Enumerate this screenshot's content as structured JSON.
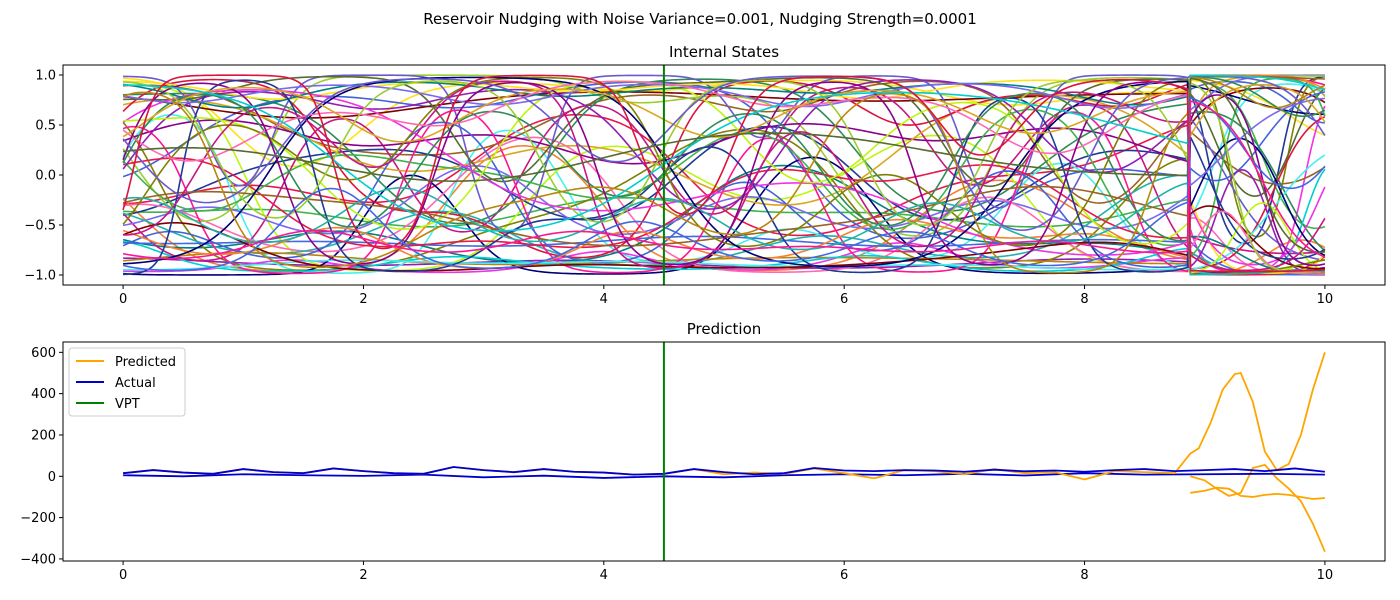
{
  "figure": {
    "suptitle": "Reservoir Nudging with Noise Variance=0.001, Nudging Strength=0.0001"
  },
  "chart_data": [
    {
      "type": "line",
      "title": "Internal States",
      "xlabel": "",
      "ylabel": "",
      "xlim": [
        -0.5,
        10.5
      ],
      "ylim": [
        -1.1,
        1.1
      ],
      "xticks": [
        0,
        2,
        4,
        6,
        8,
        10
      ],
      "xtick_labels": [
        "0",
        "2",
        "4",
        "6",
        "8",
        "10"
      ],
      "yticks": [
        1.0,
        0.5,
        0.0,
        -0.5,
        -1.0
      ],
      "ytick_labels": [
        "1.0",
        "0.5",
        "0.0",
        "−0.5",
        "−1.0"
      ],
      "grid": false,
      "legend": "none",
      "n_series": 60,
      "x_range": [
        0,
        10
      ],
      "reset_x": 8.88,
      "vline": {
        "x": 4.5,
        "color": "#008000"
      },
      "colors": [
        "#e6194b",
        "#3cb44b",
        "#ffe119",
        "#4363d8",
        "#f58231",
        "#911eb4",
        "#46f0f0",
        "#f032e6",
        "#bcf60c",
        "#008080",
        "#9a6324",
        "#800000",
        "#808000",
        "#000075",
        "#1f3a93",
        "#c71585",
        "#2e8b57",
        "#7b68ee",
        "#ff69b4",
        "#9acd32",
        "#20b2aa",
        "#8b008b",
        "#daa520",
        "#6a5acd",
        "#b8860b",
        "#00ced1",
        "#dc143c",
        "#556b2f",
        "#4169e1",
        "#ff1493"
      ],
      "summary": "Sixty reservoir internal-state traces oscillating smoothly between -1 and 1 over time 0 to 10, with an abrupt reset near t≈8.9"
    },
    {
      "type": "line",
      "title": "Prediction",
      "xlabel": "",
      "ylabel": "",
      "xlim": [
        -0.5,
        10.5
      ],
      "ylim": [
        -410,
        650
      ],
      "xticks": [
        0,
        2,
        4,
        6,
        8,
        10
      ],
      "xtick_labels": [
        "0",
        "2",
        "4",
        "6",
        "8",
        "10"
      ],
      "yticks": [
        600,
        400,
        200,
        0,
        -200,
        -400
      ],
      "ytick_labels": [
        "600",
        "400",
        "200",
        "0",
        "−200",
        "−400"
      ],
      "grid": false,
      "legend": "upper-left",
      "series": [
        {
          "name": "Predicted",
          "color": "#ffa500",
          "x": [
            0,
            0.25,
            0.5,
            0.75,
            1,
            1.25,
            1.5,
            1.75,
            2,
            2.25,
            2.5,
            2.75,
            3,
            3.25,
            3.5,
            3.75,
            4,
            4.25,
            4.5,
            4.75,
            5,
            5.25,
            5.5,
            5.75,
            6,
            6.25,
            6.5,
            6.75,
            7,
            7.25,
            7.5,
            7.75,
            8,
            8.25,
            8.5,
            8.75,
            8.88,
            8.95,
            9.05,
            9.15,
            9.25,
            9.3,
            9.4,
            9.5,
            9.6,
            9.7,
            9.8,
            9.9,
            10
          ],
          "y": [
            15,
            30,
            18,
            12,
            35,
            20,
            15,
            38,
            25,
            15,
            12,
            45,
            30,
            20,
            35,
            22,
            18,
            8,
            12,
            35,
            10,
            18,
            12,
            38,
            15,
            -10,
            30,
            25,
            10,
            35,
            15,
            20,
            -15,
            25,
            20,
            15,
            110,
            135,
            260,
            420,
            495,
            500,
            360,
            120,
            30,
            60,
            200,
            420,
            600
          ]
        },
        {
          "name": "Actual",
          "color": "#0000cd",
          "x": [
            0,
            0.25,
            0.5,
            0.75,
            1,
            1.25,
            1.5,
            1.75,
            2,
            2.25,
            2.5,
            2.75,
            3,
            3.25,
            3.5,
            3.75,
            4,
            4.25,
            4.5,
            4.75,
            5,
            5.25,
            5.5,
            5.75,
            6,
            6.25,
            6.5,
            6.75,
            7,
            7.25,
            7.5,
            7.75,
            8,
            8.25,
            8.5,
            8.75,
            9,
            9.25,
            9.5,
            9.75,
            10
          ],
          "y": [
            15,
            30,
            18,
            12,
            35,
            20,
            15,
            38,
            25,
            15,
            12,
            45,
            30,
            20,
            35,
            22,
            18,
            8,
            12,
            35,
            20,
            10,
            15,
            40,
            28,
            25,
            30,
            28,
            22,
            32,
            24,
            28,
            22,
            30,
            35,
            25,
            30,
            35,
            25,
            38,
            22
          ]
        },
        {
          "name": "VPT",
          "color": "#008000",
          "x": [
            4.5,
            4.5
          ],
          "y": [
            -410,
            650
          ]
        }
      ],
      "extra_lines": [
        {
          "name": "predicted-lower-a",
          "color": "#ffa500",
          "x": [
            8.88,
            9.0,
            9.1,
            9.2,
            9.3,
            9.4,
            9.5,
            9.6,
            9.7,
            9.8,
            9.9,
            10
          ],
          "y": [
            -80,
            -70,
            -55,
            -60,
            -95,
            -100,
            -90,
            -85,
            -90,
            -100,
            -110,
            -105
          ]
        },
        {
          "name": "predicted-lower-b",
          "color": "#ffa500",
          "x": [
            8.88,
            9.0,
            9.1,
            9.2,
            9.3,
            9.4,
            9.5,
            9.6,
            9.7,
            9.8,
            9.9,
            10
          ],
          "y": [
            0,
            -20,
            -60,
            -95,
            -80,
            40,
            55,
            -10,
            -60,
            -120,
            -230,
            -365
          ]
        },
        {
          "name": "actual-lower",
          "color": "#0000cd",
          "x": [
            0,
            0.5,
            1,
            1.5,
            2,
            2.5,
            3,
            3.5,
            4,
            4.5,
            5,
            5.5,
            6,
            6.5,
            7,
            7.5,
            8,
            8.5,
            9,
            9.5,
            10
          ],
          "y": [
            5,
            0,
            10,
            5,
            2,
            8,
            -5,
            3,
            -8,
            0,
            -5,
            5,
            10,
            5,
            12,
            4,
            15,
            8,
            10,
            12,
            8
          ]
        }
      ]
    }
  ]
}
